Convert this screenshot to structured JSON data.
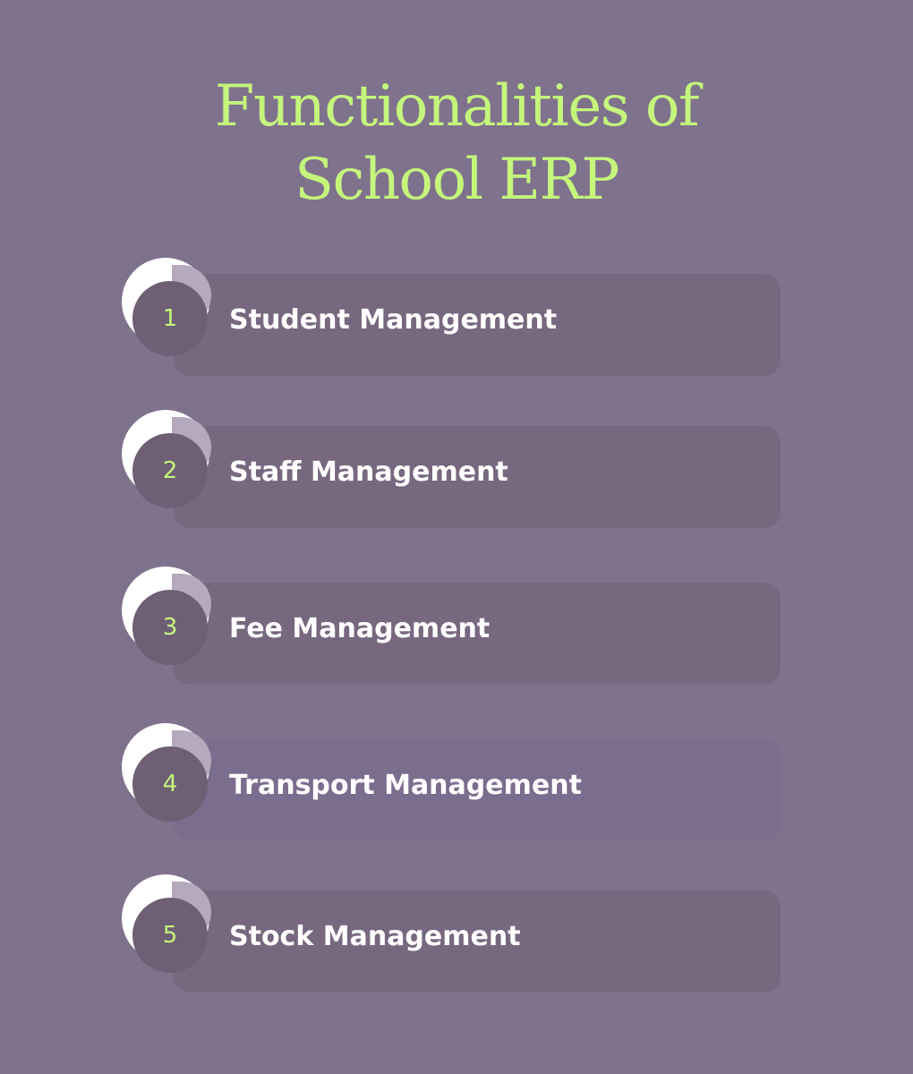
{
  "title": {
    "line1": "Functionalities of",
    "line2": "School ERP"
  },
  "colors": {
    "background": "#7f728d",
    "accent": "#c5f57c",
    "card": "#77687f",
    "badge_disc": "#6e5f75",
    "label_text": "#ffffff"
  },
  "items": [
    {
      "number": "1",
      "label": "Student Management"
    },
    {
      "number": "2",
      "label": "Staff Management"
    },
    {
      "number": "3",
      "label": "Fee Management"
    },
    {
      "number": "4",
      "label": "Transport Management"
    },
    {
      "number": "5",
      "label": "Stock Management"
    }
  ]
}
